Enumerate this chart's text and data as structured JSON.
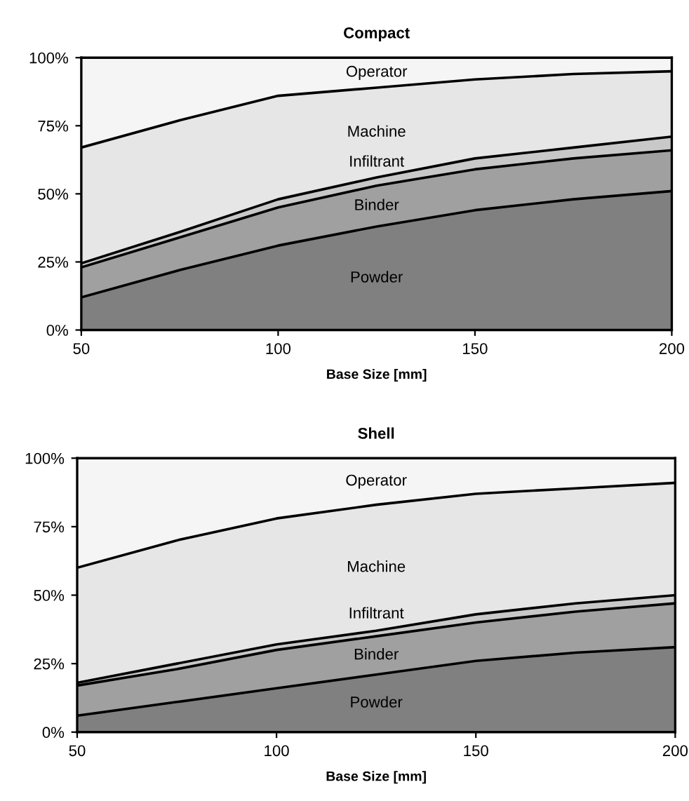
{
  "chart_data": [
    {
      "type": "area",
      "stacked": true,
      "title": "Compact",
      "xlabel": "Base Size [mm]",
      "x": [
        50,
        75,
        100,
        125,
        150,
        175,
        200
      ],
      "xlim": [
        50,
        200
      ],
      "xticks": [
        50,
        100,
        150,
        200
      ],
      "ylim": [
        0,
        100
      ],
      "yticks": [
        {
          "value": 0,
          "label": "0%"
        },
        {
          "value": 25,
          "label": "25%"
        },
        {
          "value": 50,
          "label": "50%"
        },
        {
          "value": 75,
          "label": "75%"
        },
        {
          "value": 100,
          "label": "100%"
        }
      ],
      "grid": false,
      "legend": false,
      "series": [
        {
          "name": "Powder",
          "color": "#808080",
          "values": [
            12,
            22,
            31,
            38,
            44,
            48,
            51
          ]
        },
        {
          "name": "Binder",
          "color": "#a0a0a0",
          "values": [
            11,
            12,
            14,
            15,
            15,
            15,
            15
          ]
        },
        {
          "name": "Infiltrant",
          "color": "#c8c8c8",
          "values": [
            1.5,
            2,
            3,
            3,
            4,
            4,
            5
          ]
        },
        {
          "name": "Machine",
          "color": "#e6e6e6",
          "values": [
            42.5,
            41,
            38,
            33,
            29,
            27,
            24
          ]
        },
        {
          "name": "Operator",
          "color": "#f5f5f5",
          "values": [
            33,
            23,
            14,
            11,
            8,
            6,
            5
          ]
        }
      ]
    },
    {
      "type": "area",
      "stacked": true,
      "title": "Shell",
      "xlabel": "Base Size [mm]",
      "x": [
        50,
        75,
        100,
        125,
        150,
        175,
        200
      ],
      "xlim": [
        50,
        200
      ],
      "xticks": [
        50,
        100,
        150,
        200
      ],
      "ylim": [
        0,
        100
      ],
      "yticks": [
        {
          "value": 0,
          "label": "0%"
        },
        {
          "value": 25,
          "label": "25%"
        },
        {
          "value": 50,
          "label": "50%"
        },
        {
          "value": 75,
          "label": "75%"
        },
        {
          "value": 100,
          "label": "100%"
        }
      ],
      "grid": false,
      "legend": false,
      "series": [
        {
          "name": "Powder",
          "color": "#808080",
          "values": [
            6,
            11,
            16,
            21,
            26,
            29,
            31
          ]
        },
        {
          "name": "Binder",
          "color": "#a0a0a0",
          "values": [
            11,
            12,
            14,
            14,
            14,
            15,
            16
          ]
        },
        {
          "name": "Infiltrant",
          "color": "#c8c8c8",
          "values": [
            1,
            2,
            2,
            2,
            3,
            3,
            3
          ]
        },
        {
          "name": "Machine",
          "color": "#e6e6e6",
          "values": [
            42,
            45,
            46,
            46,
            44,
            42,
            41
          ]
        },
        {
          "name": "Operator",
          "color": "#f5f5f5",
          "values": [
            40,
            30,
            22,
            17,
            13,
            11,
            9
          ]
        }
      ]
    }
  ]
}
